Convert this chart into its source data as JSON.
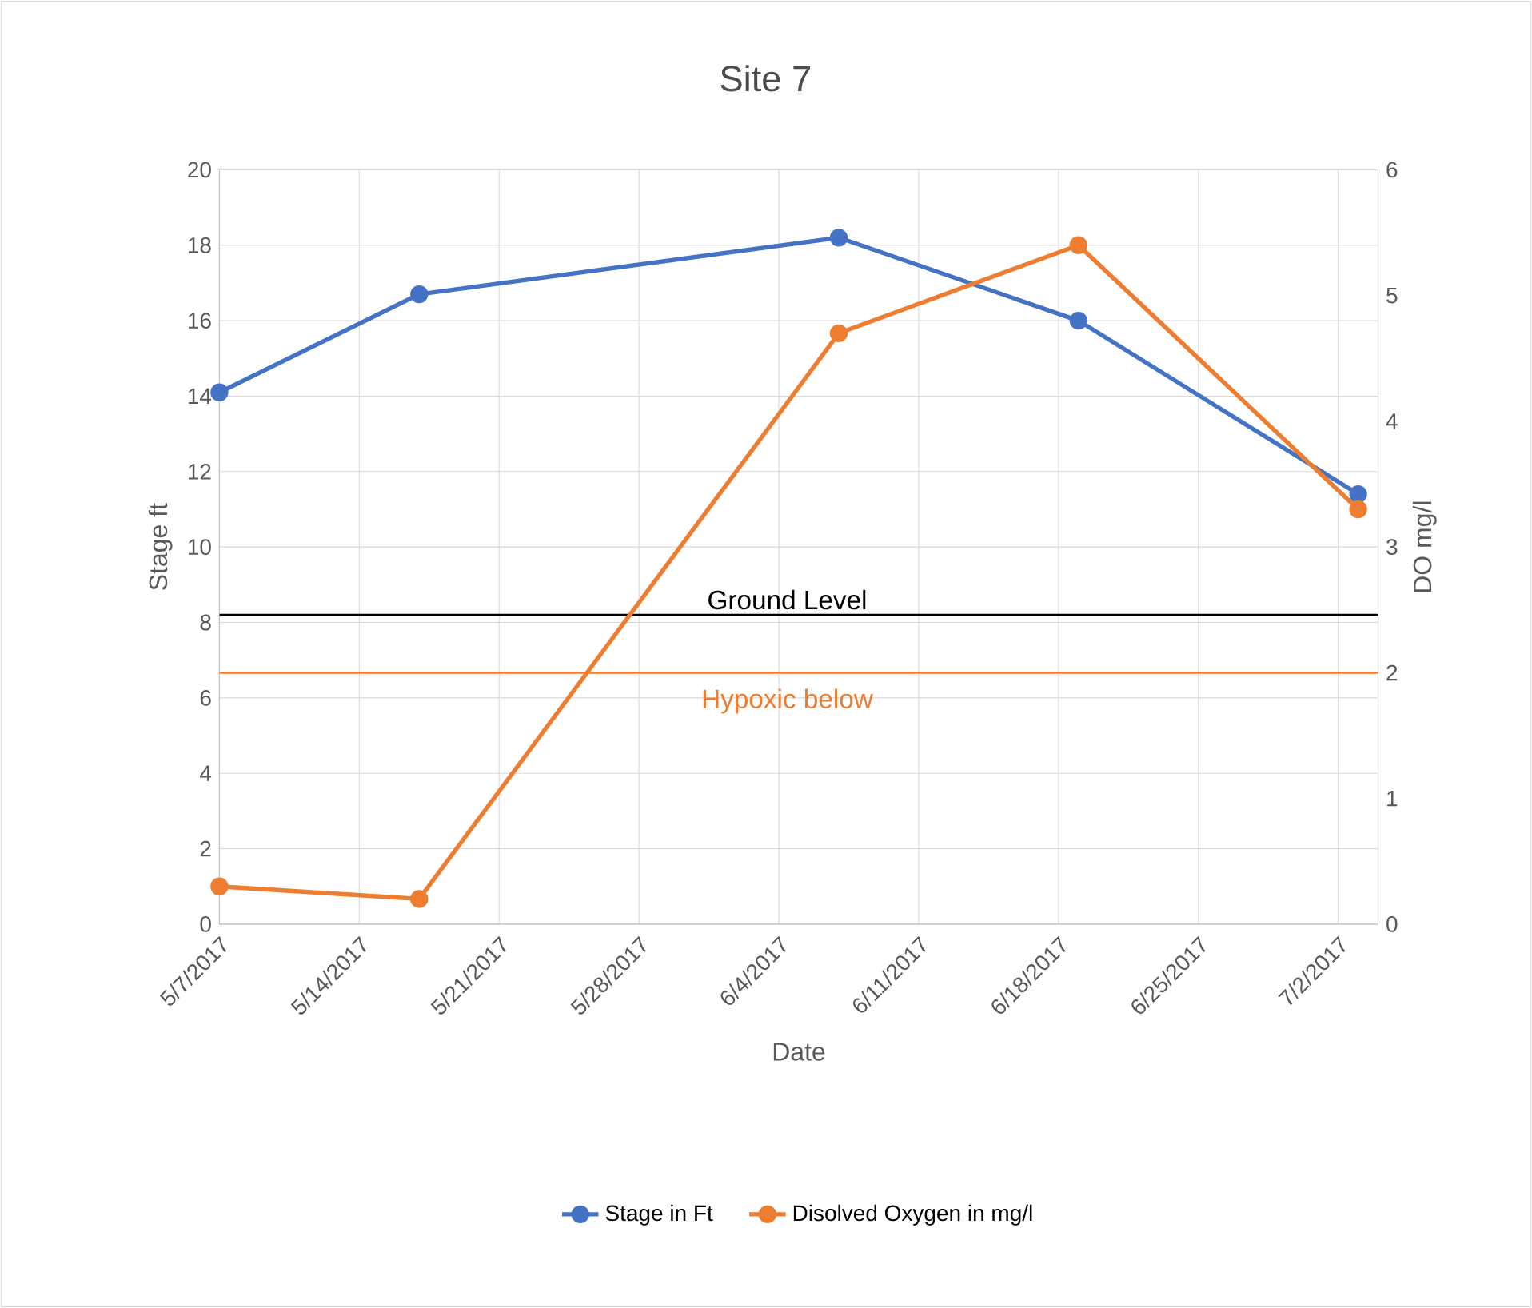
{
  "chart_data": {
    "type": "line",
    "title": "Site 7",
    "xlabel": "Date",
    "ylabel": "Stage ft",
    "y2label": "DO mg/l",
    "x": [
      "2017-05-07",
      "2017-05-17",
      "2017-06-07",
      "2017-06-19",
      "2017-07-03"
    ],
    "series": [
      {
        "name": "Stage in Ft",
        "color": "#4472c4",
        "values": [
          14.1,
          16.7,
          18.2,
          16.0,
          11.4
        ]
      },
      {
        "name": "Disolved Oxygen in mg/l",
        "color": "#ed7d31",
        "axis": "y2",
        "values": [
          0.3,
          0.2,
          4.7,
          5.4,
          3.3
        ]
      }
    ],
    "xlim": [
      "2017-05-07",
      "2017-07-04"
    ],
    "xticks": [
      {
        "value": "2017-05-07",
        "label": "5/7/2017"
      },
      {
        "value": "2017-05-14",
        "label": "5/14/2017"
      },
      {
        "value": "2017-05-21",
        "label": "5/21/2017"
      },
      {
        "value": "2017-05-28",
        "label": "5/28/2017"
      },
      {
        "value": "2017-06-04",
        "label": "6/4/2017"
      },
      {
        "value": "2017-06-11",
        "label": "6/11/2017"
      },
      {
        "value": "2017-06-18",
        "label": "6/18/2017"
      },
      {
        "value": "2017-06-25",
        "label": "6/25/2017"
      },
      {
        "value": "2017-07-02",
        "label": "7/2/2017"
      }
    ],
    "ylim": [
      0,
      20
    ],
    "yticks": [
      0,
      2,
      4,
      6,
      8,
      10,
      12,
      14,
      16,
      18,
      20
    ],
    "y2lim": [
      0,
      6
    ],
    "y2ticks": [
      0,
      1,
      2,
      3,
      4,
      5,
      6
    ],
    "ref_lines": [
      {
        "axis": "y",
        "value": 8.2,
        "label": "Ground Level",
        "color": "#000000"
      },
      {
        "axis": "y2",
        "value": 2,
        "label": "Hypoxic below",
        "color": "#ed7d31"
      }
    ],
    "grid": true,
    "legend": "bottom",
    "marker": "circle",
    "line_style": "solid"
  }
}
